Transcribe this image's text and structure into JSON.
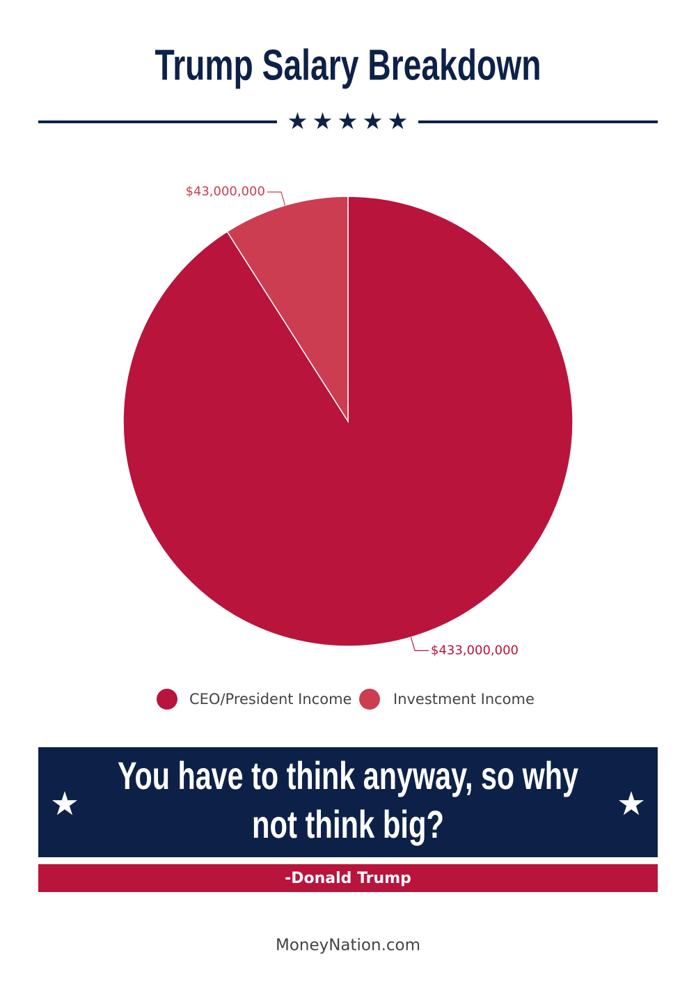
{
  "header": {
    "title": "Trump Salary Breakdown"
  },
  "chart_data": {
    "type": "pie",
    "categories": [
      "CEO/President Income",
      "Investment Income"
    ],
    "values": [
      433000000,
      43000000
    ],
    "value_labels": [
      "$433,000,000",
      "$43,000,000"
    ],
    "colors": [
      "#b8143c",
      "#cc3d52"
    ],
    "legend": "bottom"
  },
  "quote": {
    "lines": [
      "You have to think anyway, so why",
      "not think big?"
    ],
    "attribution": "-Donald Trump"
  },
  "footer": {
    "source": "MoneyNation.com"
  }
}
